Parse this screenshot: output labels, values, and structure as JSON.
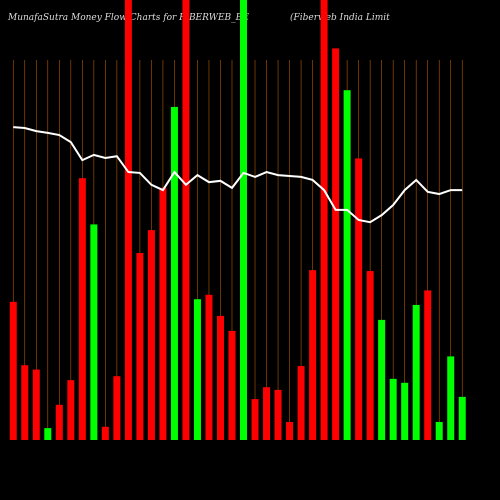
{
  "chart_data": {
    "type": "bar",
    "title": "MunafaSutra  Money Flow  Charts for FIBERWEB_BE",
    "subtitle": "(Fiberweb India  Limit",
    "categories": [
      null,
      null,
      null,
      null,
      null,
      null,
      null,
      null,
      null,
      null,
      null,
      null,
      null,
      null,
      null,
      null,
      null,
      null,
      null,
      null,
      null,
      null,
      null,
      null,
      null,
      null,
      null,
      null,
      null,
      null,
      null,
      null,
      null,
      null,
      null,
      null,
      null,
      null,
      null,
      null
    ],
    "values": [
      31.4,
      17,
      16,
      2.7,
      8,
      13.6,
      59.5,
      49,
      3,
      14.5,
      105,
      42.5,
      47.7,
      57.3,
      75.7,
      105,
      32,
      33,
      28.2,
      24.8,
      105,
      9.3,
      12,
      11.4,
      4.1,
      16.8,
      38.6,
      105,
      89,
      79.5,
      64,
      38.4,
      27.3,
      13.9,
      13,
      30.7,
      34,
      4.1,
      19,
      9.8
    ],
    "colors": [
      "#ff0000",
      "#ff0000",
      "#ff0000",
      "#00ff00",
      "#ff0000",
      "#ff0000",
      "#ff0000",
      "#00ff00",
      "#ff0000",
      "#ff0000",
      "#ff0000",
      "#ff0000",
      "#ff0000",
      "#ff0000",
      "#00ff00",
      "#ff0000",
      "#00ff00",
      "#ff0000",
      "#ff0000",
      "#ff0000",
      "#00ff00",
      "#ff0000",
      "#ff0000",
      "#ff0000",
      "#ff0000",
      "#ff0000",
      "#ff0000",
      "#ff0000",
      "#ff0000",
      "#00ff00",
      "#ff0000",
      "#ff0000",
      "#00ff00",
      "#00ff00",
      "#00ff00",
      "#00ff00",
      "#ff0000",
      "#00ff00",
      "#00ff00",
      "#00ff00"
    ],
    "line": {
      "color": "#ffffff",
      "values": [
        71.1,
        70.9,
        70.2,
        69.8,
        69.3,
        67.7,
        63.6,
        64.8,
        64.1,
        64.5,
        60.9,
        60.7,
        58,
        56.8,
        60.9,
        58,
        60.2,
        58.6,
        58.9,
        57.3,
        60.7,
        59.8,
        60.9,
        60.2,
        60,
        59.8,
        59.1,
        56.8,
        52.3,
        52.3,
        50,
        49.5,
        51.1,
        53.4,
        56.8,
        59.1,
        56.4,
        55.9,
        56.8,
        56.8
      ]
    },
    "ylim": [
      0,
      100
    ],
    "grid": true,
    "grid_color": "#b35900"
  }
}
